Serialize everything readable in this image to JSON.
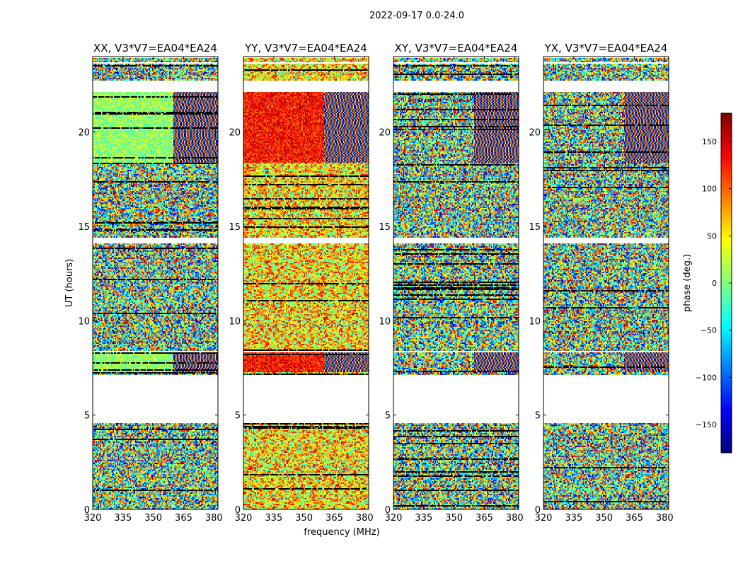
{
  "figure": {
    "suptitle": "2022-09-17 0.0-24.0",
    "ylabel": "UT (hours)",
    "xlabel": "frequency (MHz)"
  },
  "chart_data": {
    "type": "heatmap",
    "x": {
      "label": "frequency (MHz)",
      "range": [
        320,
        382
      ],
      "ticks": [
        320,
        335,
        350,
        365,
        380
      ]
    },
    "y": {
      "label": "UT (hours)",
      "range": [
        0,
        24
      ],
      "ticks": [
        0,
        5,
        10,
        15,
        20
      ]
    },
    "colorbar": {
      "label": "phase (deg.)",
      "range": [
        -180,
        180
      ],
      "ticks": [
        150,
        100,
        50,
        0,
        -50,
        -100,
        -150
      ],
      "colormap": [
        "#00007f",
        "#0000ff",
        "#007fff",
        "#00ffff",
        "#7fff7f",
        "#ffff00",
        "#ff7f00",
        "#ff0000",
        "#7f0000"
      ]
    },
    "panels": [
      {
        "title": "XX, V3*V7=EA04*EA24",
        "style": "xx"
      },
      {
        "title": "YY, V3*V7=EA04*EA24",
        "style": "yy"
      },
      {
        "title": "XY, V3*V7=EA04*EA24",
        "style": "cross"
      },
      {
        "title": "YX, V3*V7=EA04*EA24",
        "style": "cross"
      }
    ],
    "gaps_ut": [
      [
        4.55,
        5.0
      ],
      [
        5.0,
        7.15
      ],
      [
        8.3,
        8.4
      ],
      [
        14.1,
        14.4
      ],
      [
        22.1,
        22.7
      ],
      [
        23.6,
        23.7
      ],
      [
        23.9,
        24.0
      ]
    ]
  }
}
